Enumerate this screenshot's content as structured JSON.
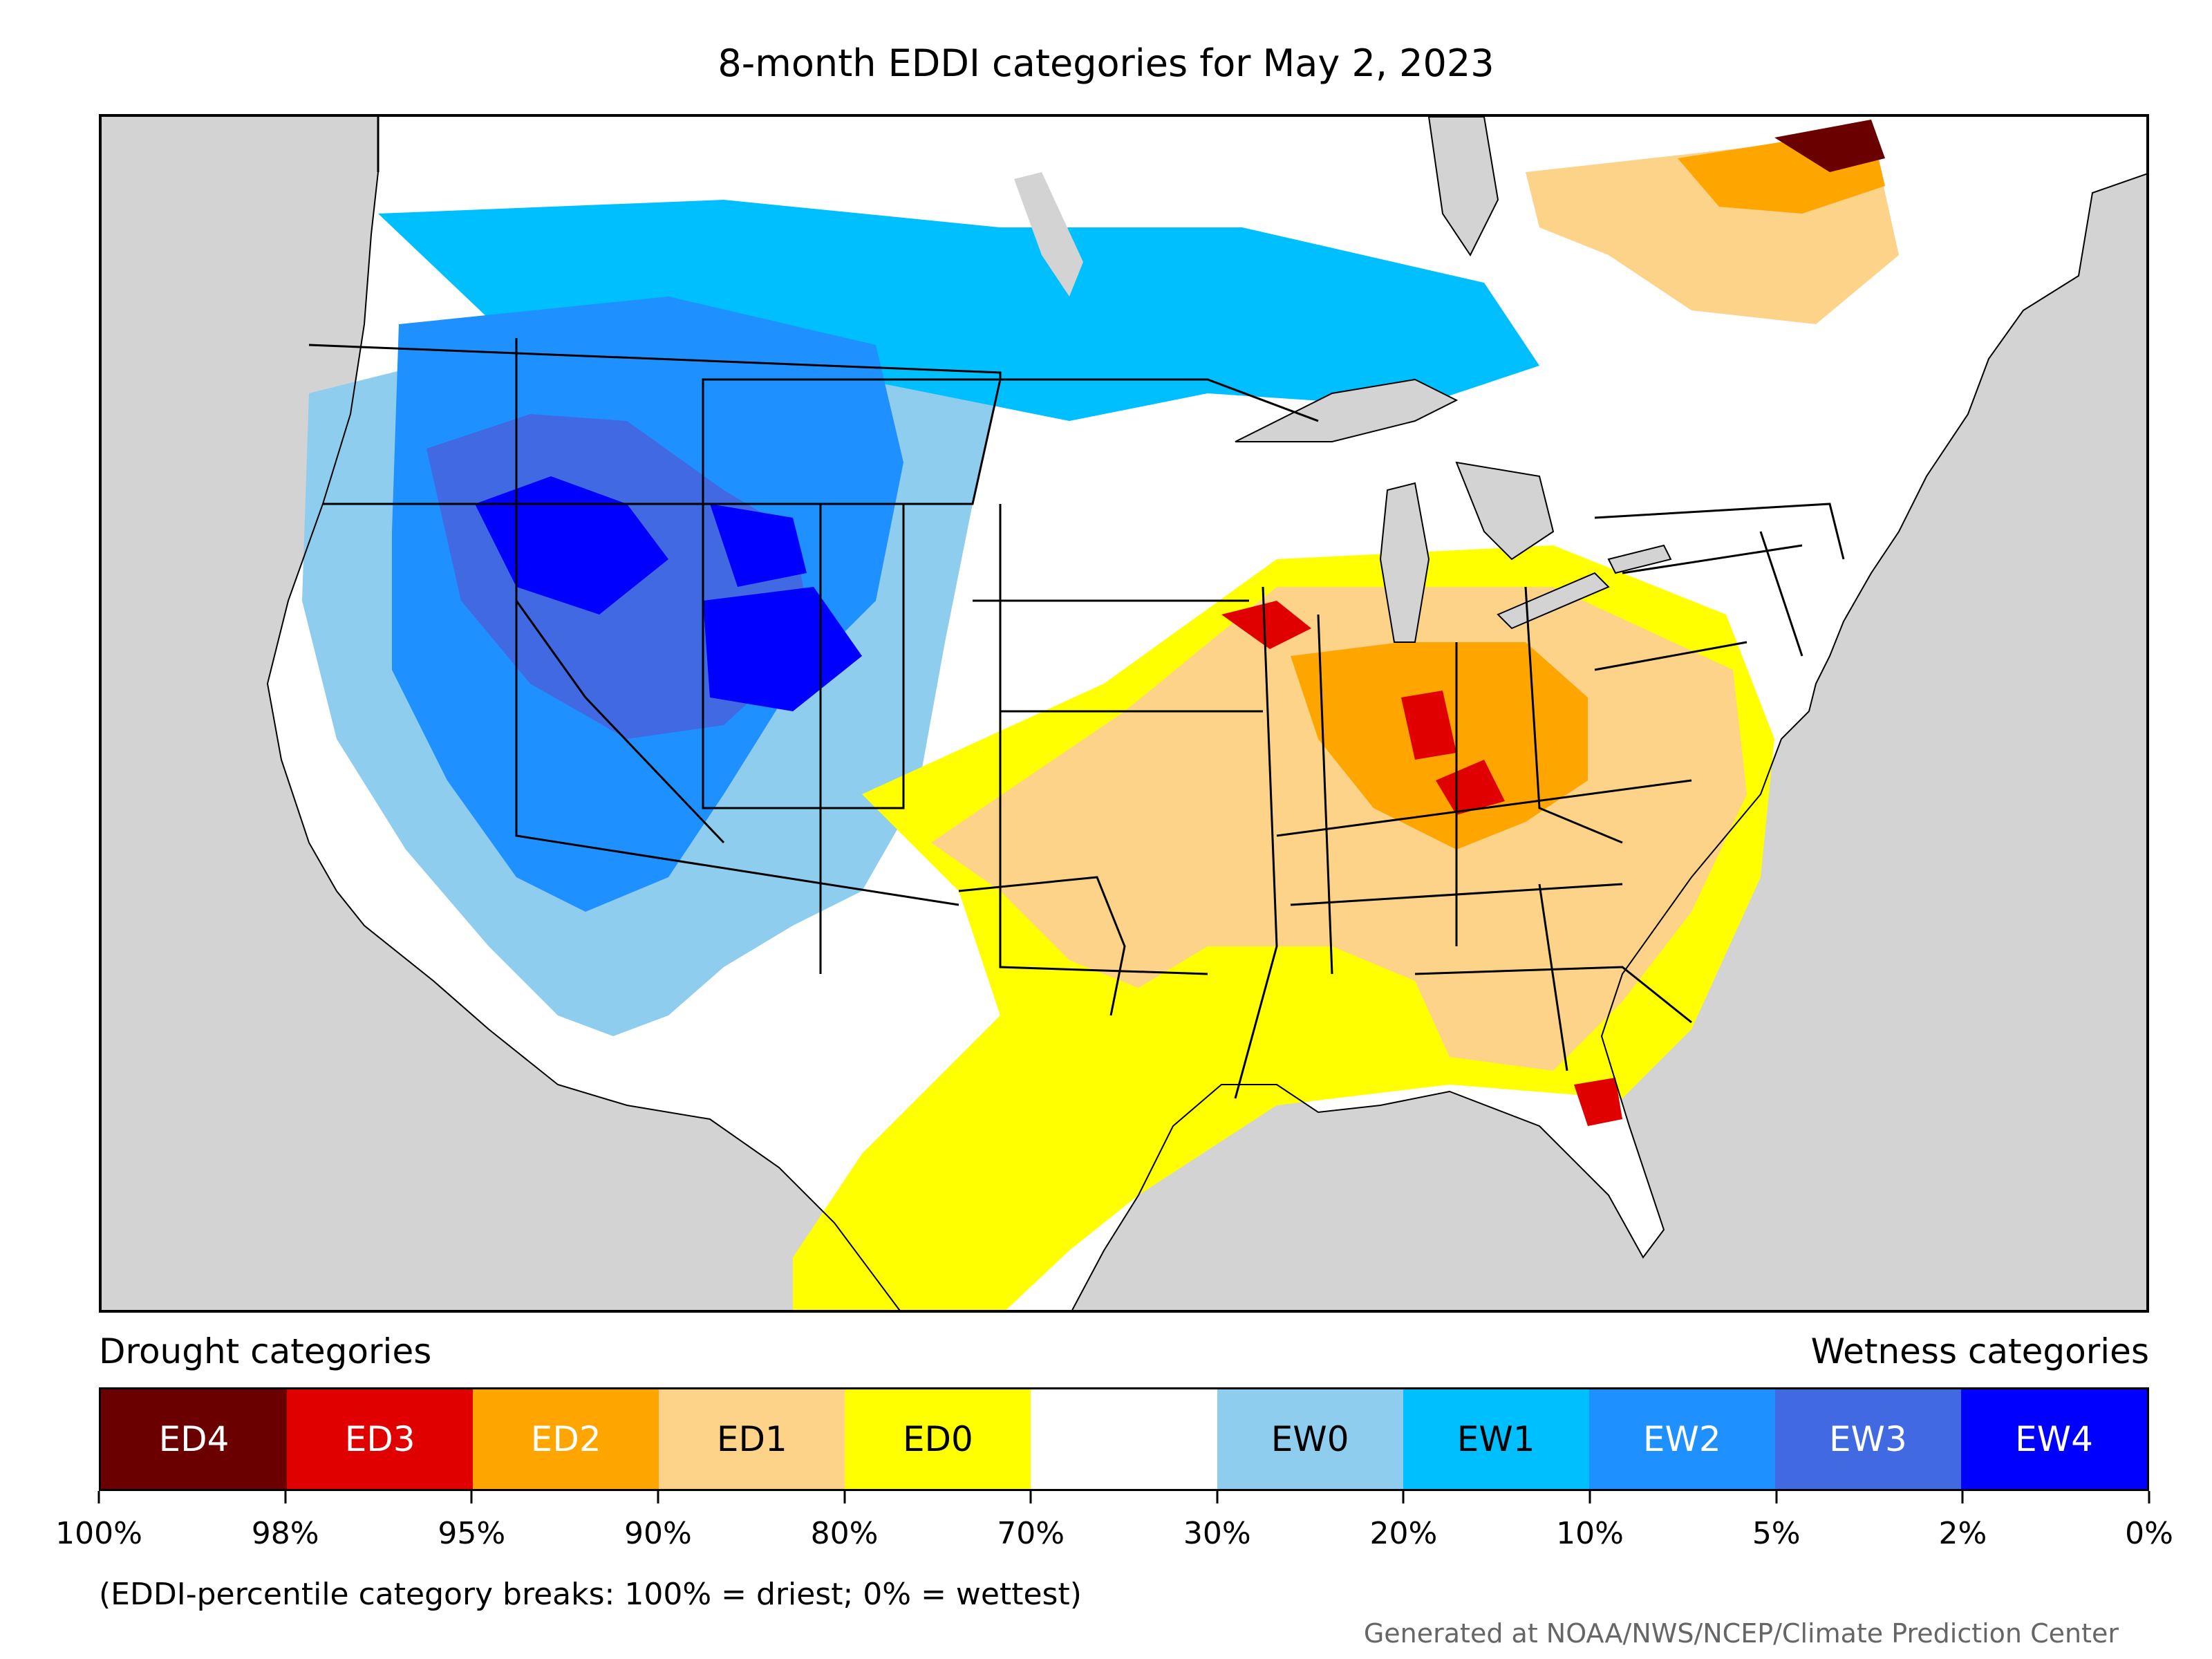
{
  "title": "8-month EDDI categories for May 2, 2023",
  "legend": {
    "drought_header": "Drought categories",
    "wetness_header": "Wetness categories",
    "categories": [
      {
        "label": "ED4",
        "color": "#6b0000",
        "text_color": "#ffffff"
      },
      {
        "label": "ED3",
        "color": "#e00000",
        "text_color": "#ffffff"
      },
      {
        "label": "ED2",
        "color": "#ffa500",
        "text_color": "#ffffff"
      },
      {
        "label": "ED1",
        "color": "#fdd38a",
        "text_color": "#000000"
      },
      {
        "label": "ED0",
        "color": "#ffff00",
        "text_color": "#000000"
      },
      {
        "label": "",
        "color": "#ffffff",
        "text_color": "#000000"
      },
      {
        "label": "EW0",
        "color": "#8ecdee",
        "text_color": "#000000"
      },
      {
        "label": "EW1",
        "color": "#00bfff",
        "text_color": "#000000"
      },
      {
        "label": "EW2",
        "color": "#1e90ff",
        "text_color": "#ffffff"
      },
      {
        "label": "EW3",
        "color": "#4169e1",
        "text_color": "#ffffff"
      },
      {
        "label": "EW4",
        "color": "#0000ff",
        "text_color": "#ffffff"
      }
    ],
    "ticks": [
      "100%",
      "98%",
      "95%",
      "90%",
      "80%",
      "70%",
      "30%",
      "20%",
      "10%",
      "5%",
      "2%",
      "0%"
    ],
    "note": "(EDDI-percentile category breaks: 100% = driest; 0% = wettest)"
  },
  "credit": "Generated at NOAA/NWS/NCEP/Climate Prediction Center"
}
